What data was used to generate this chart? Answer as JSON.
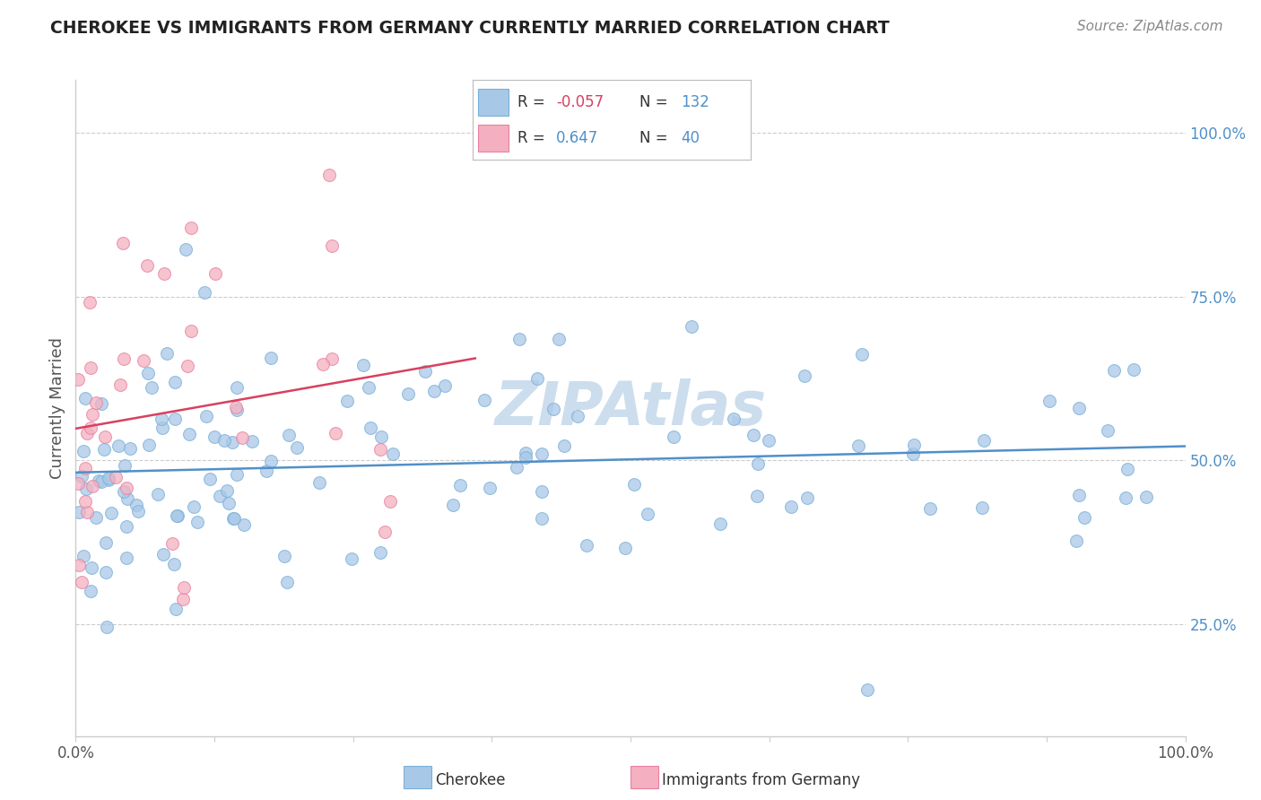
{
  "title": "CHEROKEE VS IMMIGRANTS FROM GERMANY CURRENTLY MARRIED CORRELATION CHART",
  "source": "Source: ZipAtlas.com",
  "ylabel": "Currently Married",
  "blue_color": "#a8c8e8",
  "blue_edge_color": "#7ab0d8",
  "pink_color": "#f4b0c0",
  "pink_edge_color": "#e880a0",
  "blue_line_color": "#5090c8",
  "pink_line_color": "#d84060",
  "watermark_color": "#ccdded",
  "right_ytick_vals": [
    0.25,
    0.5,
    0.75,
    1.0
  ],
  "right_yticklabels": [
    "25.0%",
    "50.0%",
    "75.0%",
    "100.0%"
  ],
  "N_blue": 132,
  "N_pink": 40,
  "R_blue": -0.057,
  "R_pink": 0.647,
  "xmin": 0.0,
  "xmax": 1.0,
  "ymin": 0.08,
  "ymax": 1.08,
  "background_color": "#ffffff",
  "grid_color": "#cccccc",
  "title_color": "#222222",
  "source_color": "#888888",
  "axis_color": "#cccccc",
  "tick_label_color": "#555555",
  "right_tick_color": "#5090c8",
  "legend_R_color_blue": "#d84060",
  "legend_R_color_pink": "#5090c8",
  "legend_N_color": "#5090c8"
}
